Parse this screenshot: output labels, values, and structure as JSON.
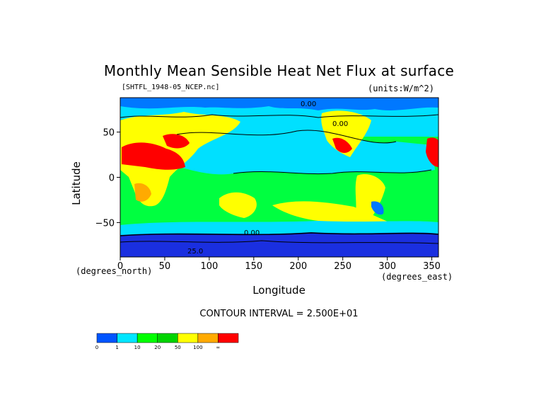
{
  "chart_data": {
    "type": "heatmap",
    "title": "Monthly Mean Sensible Heat Net Flux at surface",
    "source_label": "[SHTFL_1948-05_NCEP.nc]",
    "units_label": "(units:W/m^2)",
    "xlabel": "Longitude",
    "ylabel": "Latitude",
    "x_units": "(degrees_east)",
    "y_units": "(degrees_north)",
    "xlim": [
      0,
      357.5
    ],
    "ylim": [
      -88,
      88
    ],
    "x_ticks": [
      "0",
      "50",
      "100",
      "150",
      "200",
      "250",
      "300",
      "350"
    ],
    "x_tick_values": [
      0,
      50,
      100,
      150,
      200,
      250,
      300,
      350
    ],
    "y_ticks": [
      "50",
      "0",
      "−50"
    ],
    "y_tick_values": [
      50,
      0,
      -50
    ],
    "contour_interval_text": "CONTOUR INTERVAL = 2.500E+01",
    "contour_labels": [
      "0.00",
      "0.00",
      "0.00",
      "25.0"
    ],
    "colorbar": {
      "labels": [
        "0",
        "1",
        "10",
        "20",
        "50",
        "100",
        "∞"
      ],
      "colors": [
        "#0055ff",
        "#00e6ff",
        "#00ff00",
        "#00d400",
        "#ffff00",
        "#ffaa00",
        "#ff0000"
      ]
    },
    "colors": {
      "deep_blue": "#1a2fe0",
      "blue": "#0078ff",
      "cyan": "#00e0ff",
      "green": "#00ff40",
      "yellow": "#ffff00",
      "orange": "#ffaa00",
      "red": "#ff0000"
    },
    "grid": false
  }
}
